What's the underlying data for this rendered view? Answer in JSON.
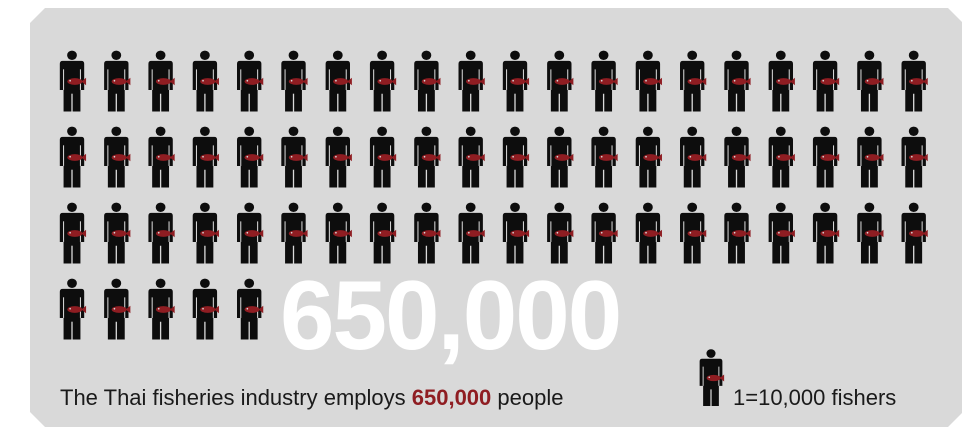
{
  "colors": {
    "background": "#d9d9d9",
    "figure": "#0d0d0d",
    "fish": "#8f1d22",
    "highlight": "#8f1d22",
    "big_number": "#ffffff"
  },
  "headline_number": "650,000",
  "caption": {
    "before": "The Thai fisheries industry employs ",
    "highlight": "650,000",
    "after": " people"
  },
  "legend": {
    "icon": "fisher-icon",
    "label": "1=10,000 fishers"
  },
  "chart_data": {
    "type": "pictograph",
    "unit_value": 10000,
    "unit_label": "fishers",
    "icons_per_row": 20,
    "rows": [
      20,
      20,
      20,
      5
    ],
    "total_icons": 65,
    "total_value": 650000
  }
}
